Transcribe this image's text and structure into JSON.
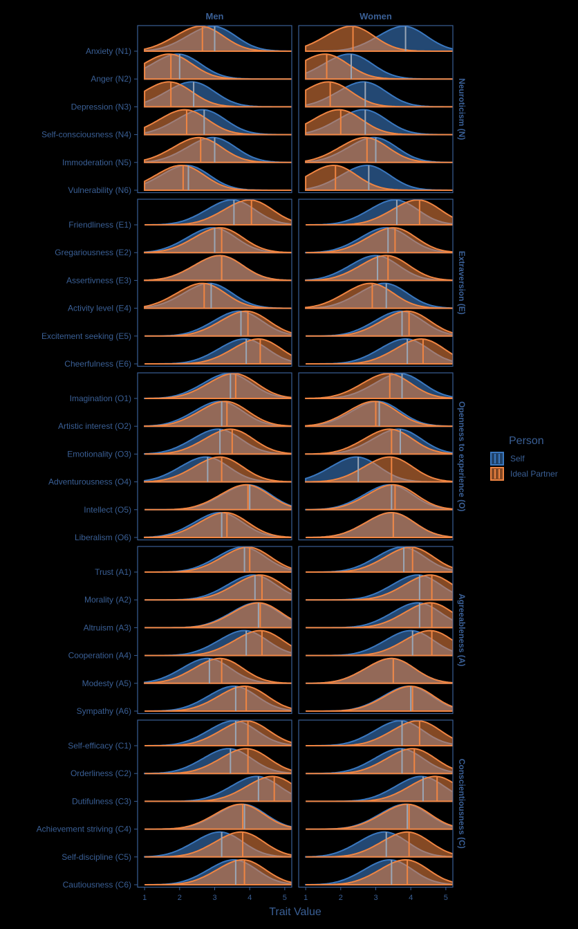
{
  "chart_data": {
    "type": "area",
    "x_label": "Trait Value",
    "x_ticks": [
      1,
      2,
      3,
      4,
      5
    ],
    "xlim": [
      0.8,
      5.2
    ],
    "columns": [
      "Men",
      "Women"
    ],
    "legend": {
      "title": "Person",
      "position": "right",
      "entries": [
        {
          "name": "Self",
          "color": "#3a78c0"
        },
        {
          "name": "Ideal Partner",
          "color": "#f08542"
        }
      ]
    },
    "groups": [
      {
        "label": "Neuroticism (N)",
        "traits": [
          {
            "label": "Anxiety (N1)",
            "men": {
              "self": 3.0,
              "ideal": 2.65
            },
            "women": {
              "self": 3.85,
              "ideal": 2.35
            }
          },
          {
            "label": "Anger (N2)",
            "men": {
              "self": 2.0,
              "ideal": 1.75
            },
            "women": {
              "self": 2.3,
              "ideal": 1.6
            }
          },
          {
            "label": "Depression (N3)",
            "men": {
              "self": 2.4,
              "ideal": 1.75
            },
            "women": {
              "self": 2.7,
              "ideal": 1.7
            }
          },
          {
            "label": "Self-consciousness (N4)",
            "men": {
              "self": 2.7,
              "ideal": 2.2
            },
            "women": {
              "self": 2.7,
              "ideal": 2.0
            }
          },
          {
            "label": "Immoderation (N5)",
            "men": {
              "self": 3.0,
              "ideal": 2.6
            },
            "women": {
              "self": 3.0,
              "ideal": 2.75
            }
          },
          {
            "label": "Vulnerability (N6)",
            "men": {
              "self": 2.25,
              "ideal": 2.1
            },
            "women": {
              "self": 2.8,
              "ideal": 1.85
            }
          }
        ]
      },
      {
        "label": "Extraversion (E)",
        "traits": [
          {
            "label": "Friendliness (E1)",
            "men": {
              "self": 3.55,
              "ideal": 4.05
            },
            "women": {
              "self": 3.6,
              "ideal": 4.25
            }
          },
          {
            "label": "Gregariousness (E2)",
            "men": {
              "self": 3.0,
              "ideal": 3.2
            },
            "women": {
              "self": 3.35,
              "ideal": 3.55
            }
          },
          {
            "label": "Assertivness (E3)",
            "men": {
              "self": 3.2,
              "ideal": 3.2
            },
            "women": {
              "self": 3.05,
              "ideal": 3.35
            }
          },
          {
            "label": "Activity level (E4)",
            "men": {
              "self": 2.9,
              "ideal": 2.7
            },
            "women": {
              "self": 3.3,
              "ideal": 2.9
            }
          },
          {
            "label": "Excitement seeking (E5)",
            "men": {
              "self": 3.75,
              "ideal": 3.95
            },
            "women": {
              "self": 3.75,
              "ideal": 3.95
            }
          },
          {
            "label": "Cheerfulness (E6)",
            "men": {
              "self": 3.9,
              "ideal": 4.3
            },
            "women": {
              "self": 3.9,
              "ideal": 4.35
            }
          }
        ]
      },
      {
        "label": "Openness to experience (O)",
        "traits": [
          {
            "label": "Imagination (O1)",
            "men": {
              "self": 3.45,
              "ideal": 3.6
            },
            "women": {
              "self": 3.75,
              "ideal": 3.4
            }
          },
          {
            "label": "Artistic interest (O2)",
            "men": {
              "self": 3.2,
              "ideal": 3.35
            },
            "women": {
              "self": 3.1,
              "ideal": 3.0
            }
          },
          {
            "label": "Emotionality (O3)",
            "men": {
              "self": 3.15,
              "ideal": 3.5
            },
            "women": {
              "self": 3.7,
              "ideal": 3.45
            }
          },
          {
            "label": "Adventurousness (O4)",
            "men": {
              "self": 2.8,
              "ideal": 3.2
            },
            "women": {
              "self": 2.5,
              "ideal": 3.45
            }
          },
          {
            "label": "Intellect (O5)",
            "men": {
              "self": 4.0,
              "ideal": 3.95
            },
            "women": {
              "self": 3.45,
              "ideal": 3.55
            }
          },
          {
            "label": "Liberalism (O6)",
            "men": {
              "self": 3.2,
              "ideal": 3.35
            },
            "women": {
              "self": 3.5,
              "ideal": 3.5
            }
          }
        ]
      },
      {
        "label": "Agreeableness (A)",
        "traits": [
          {
            "label": "Trust (A1)",
            "men": {
              "self": 3.85,
              "ideal": 4.0
            },
            "women": {
              "self": 3.8,
              "ideal": 4.05
            }
          },
          {
            "label": "Morality (A2)",
            "men": {
              "self": 4.15,
              "ideal": 4.35
            },
            "women": {
              "self": 4.25,
              "ideal": 4.6
            }
          },
          {
            "label": "Altruism (A3)",
            "men": {
              "self": 4.25,
              "ideal": 4.3
            },
            "women": {
              "self": 4.25,
              "ideal": 4.6
            }
          },
          {
            "label": "Cooperation (A4)",
            "men": {
              "self": 3.9,
              "ideal": 4.35
            },
            "women": {
              "self": 4.05,
              "ideal": 4.6
            }
          },
          {
            "label": "Modesty (A5)",
            "men": {
              "self": 2.85,
              "ideal": 3.2
            },
            "women": {
              "self": 3.5,
              "ideal": 3.5
            }
          },
          {
            "label": "Sympathy (A6)",
            "men": {
              "self": 3.6,
              "ideal": 3.9
            },
            "women": {
              "self": 4.0,
              "ideal": 4.05
            }
          }
        ]
      },
      {
        "label": "Conscientiousness (C)",
        "traits": [
          {
            "label": "Self-efficacy (C1)",
            "men": {
              "self": 3.6,
              "ideal": 3.95
            },
            "women": {
              "self": 3.75,
              "ideal": 4.25
            }
          },
          {
            "label": "Orderliness (C2)",
            "men": {
              "self": 3.45,
              "ideal": 3.95
            },
            "women": {
              "self": 3.75,
              "ideal": 4.1
            }
          },
          {
            "label": "Dutifulness (C3)",
            "men": {
              "self": 4.25,
              "ideal": 4.7
            },
            "women": {
              "self": 4.35,
              "ideal": 4.75
            }
          },
          {
            "label": "Achievement striving (C4)",
            "men": {
              "self": 3.85,
              "ideal": 3.8
            },
            "women": {
              "self": 3.9,
              "ideal": 3.95
            }
          },
          {
            "label": "Self-discipline (C5)",
            "men": {
              "self": 3.2,
              "ideal": 3.8
            },
            "women": {
              "self": 3.3,
              "ideal": 3.95
            }
          },
          {
            "label": "Cautiousness (C6)",
            "men": {
              "self": 3.6,
              "ideal": 3.85
            },
            "women": {
              "self": 3.45,
              "ideal": 3.9
            }
          }
        ]
      }
    ]
  }
}
